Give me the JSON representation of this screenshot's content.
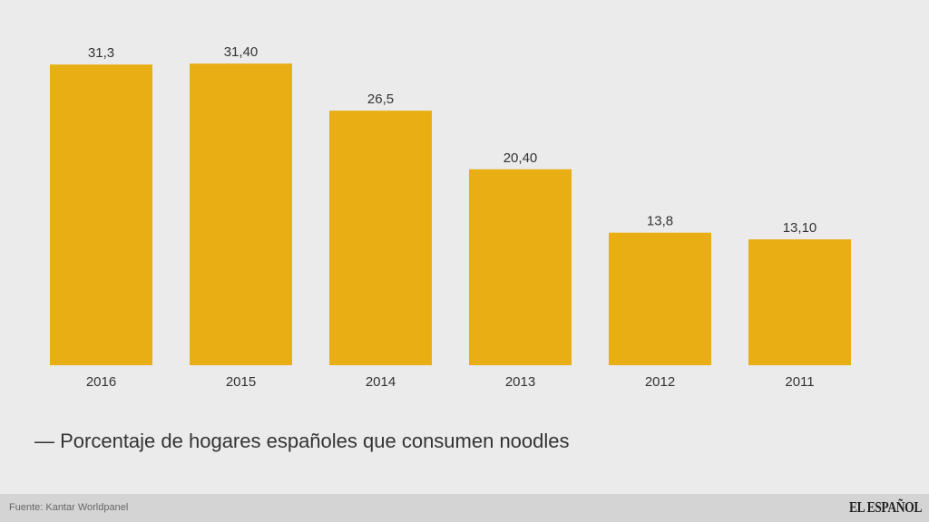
{
  "chart_data": {
    "type": "bar",
    "title": "",
    "categories": [
      "2016",
      "2015",
      "2014",
      "2013",
      "2012",
      "2011"
    ],
    "values": [
      31.3,
      31.4,
      26.5,
      20.4,
      13.8,
      13.1
    ],
    "data_labels": [
      "31,3",
      "31,40",
      "26,5",
      "20,40",
      "13,8",
      "13,10"
    ],
    "series": [
      {
        "name": "Porcentaje de hogares españoles que consumen noodles",
        "values": [
          31.3,
          31.4,
          26.5,
          20.4,
          13.8,
          13.1
        ]
      }
    ],
    "xlabel": "",
    "ylabel": "",
    "ylim": [
      0,
      31.4
    ],
    "grid": false,
    "legend_placement": "bottom-left",
    "bar_color": "#e8ae14"
  },
  "legend": {
    "label": "— Porcentaje de hogares españoles que consumen noodles"
  },
  "footer": {
    "source": "Fuente: Kantar Worldpanel",
    "logo": "EL ESPAÑOL"
  }
}
